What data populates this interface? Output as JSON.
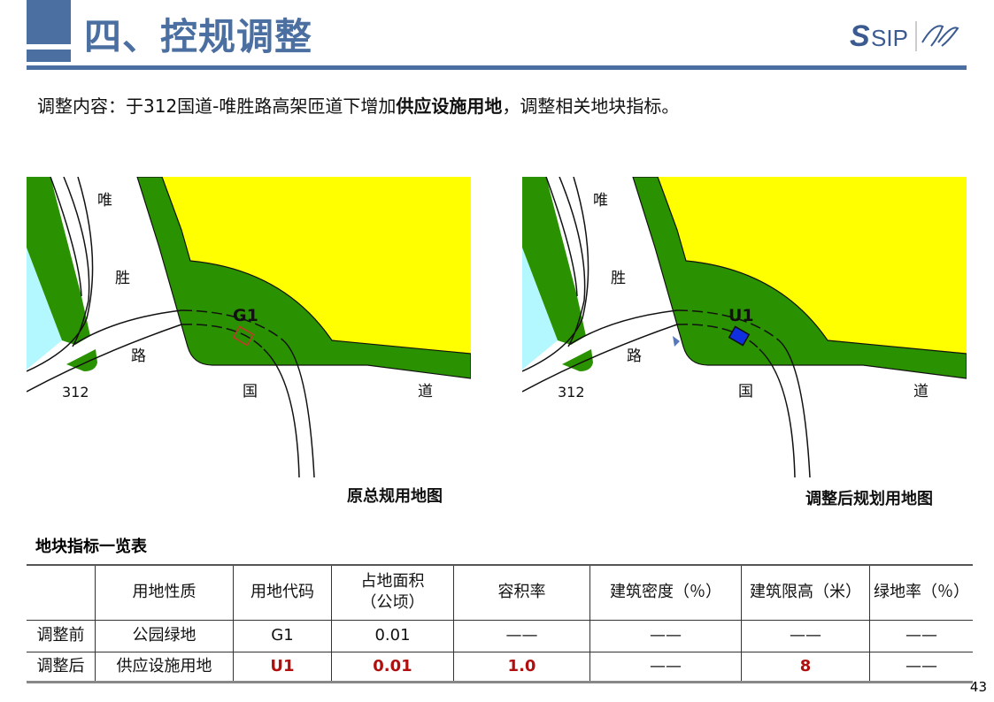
{
  "header": {
    "title": "四、控规调整",
    "logo_text": "SIP"
  },
  "description": {
    "prefix": "调整内容：于312国道-唯胜路高架匝道下增加",
    "bold": "供应设施用地",
    "suffix": "，调整相关地块指标。"
  },
  "maps": [
    {
      "caption": "原总规用地图",
      "parcel_label": "G1",
      "parcel_color": "#c0392b",
      "parcel_filled": false,
      "labels": {
        "wei": "唯",
        "sheng": "胜",
        "lu": "路",
        "num": "312",
        "guo": "国",
        "dao": "道"
      }
    },
    {
      "caption": "调整后规划用地图",
      "parcel_label": "U1",
      "parcel_color": "#1030e0",
      "parcel_filled": true,
      "labels": {
        "wei": "唯",
        "sheng": "胜",
        "lu": "路",
        "num": "312",
        "guo": "国",
        "dao": "道"
      }
    }
  ],
  "colors": {
    "accent": "#4a6fa0",
    "green": "#2a9200",
    "yellow": "#ffff00",
    "water": "#b4f8ff",
    "highlight": "#b01010"
  },
  "table": {
    "title": "地块指标一览表",
    "headers": [
      "",
      "用地性质",
      "用地代码",
      "占地面积（公顷）",
      "容积率",
      "建筑密度（％）",
      "建筑限高（米）",
      "绿地率（％）"
    ],
    "rows": [
      [
        "调整前",
        "公园绿地",
        "G1",
        "0.01",
        "——",
        "——",
        "——",
        "——"
      ],
      [
        "调整后",
        "供应设施用地",
        "U1",
        "0.01",
        "1.0",
        "——",
        "8",
        "——"
      ]
    ]
  },
  "page_number": "43"
}
